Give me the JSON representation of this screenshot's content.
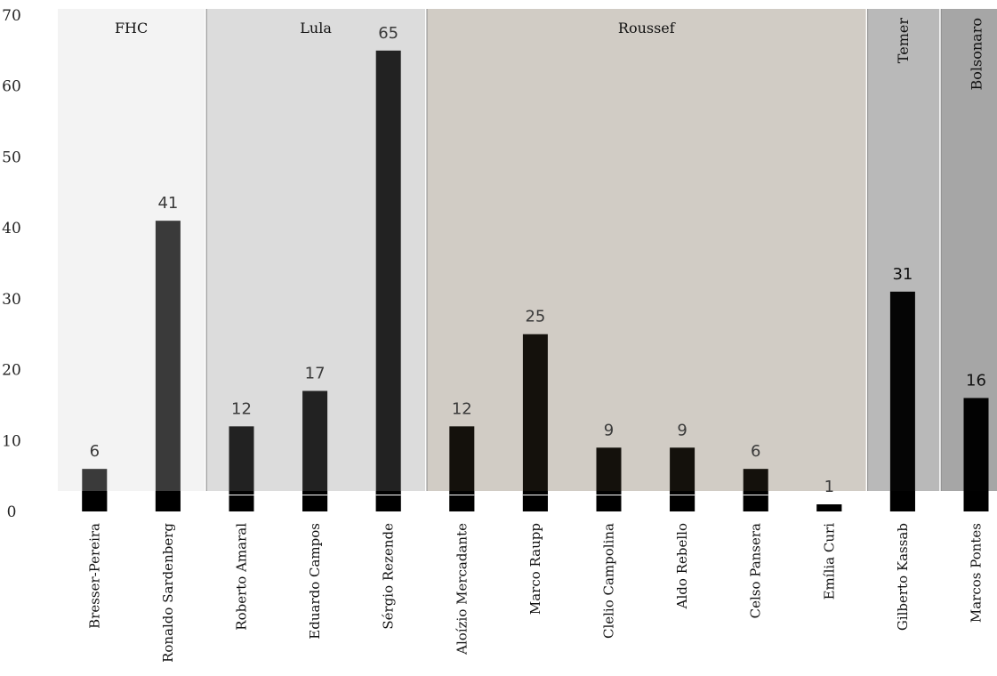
{
  "chart_data": {
    "type": "bar",
    "categories": [
      "Bresser-Pereira",
      "Ronaldo Sardenberg",
      "Roberto Amaral",
      "Eduardo Campos",
      "Sérgio Rezende",
      "Aloízio Mercadante",
      "Marco Raupp",
      "Clelio Campolina",
      "Aldo Rebello",
      "Celso Pansera",
      "Emília Curi",
      "Gilberto Kassab",
      "Marcos Pontes"
    ],
    "values": [
      6,
      41,
      12,
      17,
      65,
      12,
      25,
      9,
      9,
      6,
      1,
      31,
      16
    ],
    "value_labels": [
      "6",
      "41",
      "12",
      "17",
      "65",
      "12",
      "25",
      "9",
      "9",
      "6",
      "1",
      "31",
      "16"
    ],
    "ylim": [
      0,
      70
    ],
    "yticks": [
      "0",
      "10",
      "20",
      "30",
      "40",
      "50",
      "60",
      "70"
    ],
    "periods": [
      {
        "label": "FHC",
        "first": 0,
        "last": 1,
        "color": "#f3f3f3",
        "bar_color": "#3a3a3a",
        "label_vertical": false
      },
      {
        "label": "Lula",
        "first": 2,
        "last": 4,
        "color": "#dcdcdc",
        "bar_color": "#222222",
        "label_vertical": false
      },
      {
        "label": "Roussef",
        "first": 5,
        "last": 10,
        "color": "#d1ccc5",
        "bar_color": "#14110c",
        "label_vertical": false
      },
      {
        "label": "Temer",
        "first": 11,
        "last": 11,
        "color": "#b9b9b9",
        "bar_color": "#050505",
        "label_vertical": true
      },
      {
        "label": "Bolsonaro",
        "first": 12,
        "last": 12,
        "color": "#a6a6a6",
        "bar_color": "#020202",
        "label_vertical": true
      }
    ],
    "xlabel": "",
    "ylabel": "",
    "title": ""
  }
}
